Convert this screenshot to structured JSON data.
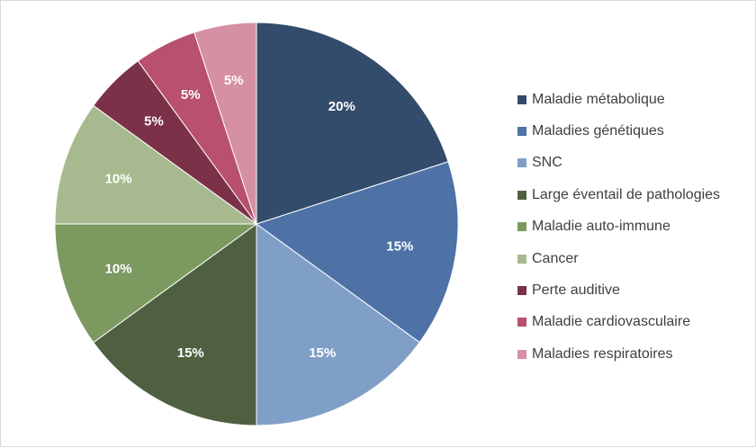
{
  "chart_data": {
    "type": "pie",
    "title": "",
    "legend_position": "right",
    "slices": [
      {
        "name": "Maladie métabolique",
        "value": 20,
        "label": "20%",
        "color": "#344c6b"
      },
      {
        "name": "Maladies génétiques",
        "value": 15,
        "label": "15%",
        "color": "#4e72a6"
      },
      {
        "name": "SNC",
        "value": 15,
        "label": "15%",
        "color": "#809fc7"
      },
      {
        "name": "Large éventail de pathologies",
        "value": 15,
        "label": "15%",
        "color": "#4f6041"
      },
      {
        "name": "Maladie auto-immune",
        "value": 10,
        "label": "10%",
        "color": "#7c9a60"
      },
      {
        "name": "Cancer",
        "value": 10,
        "label": "10%",
        "color": "#a7ba8f"
      },
      {
        "name": "Perte auditive",
        "value": 5,
        "label": "5%",
        "color": "#7b3148"
      },
      {
        "name": "Maladie cardiovasculaire",
        "value": 5,
        "label": "5%",
        "color": "#b8506e"
      },
      {
        "name": "Maladies respiratoires",
        "value": 5,
        "label": "5%",
        "color": "#d590a3"
      }
    ]
  }
}
